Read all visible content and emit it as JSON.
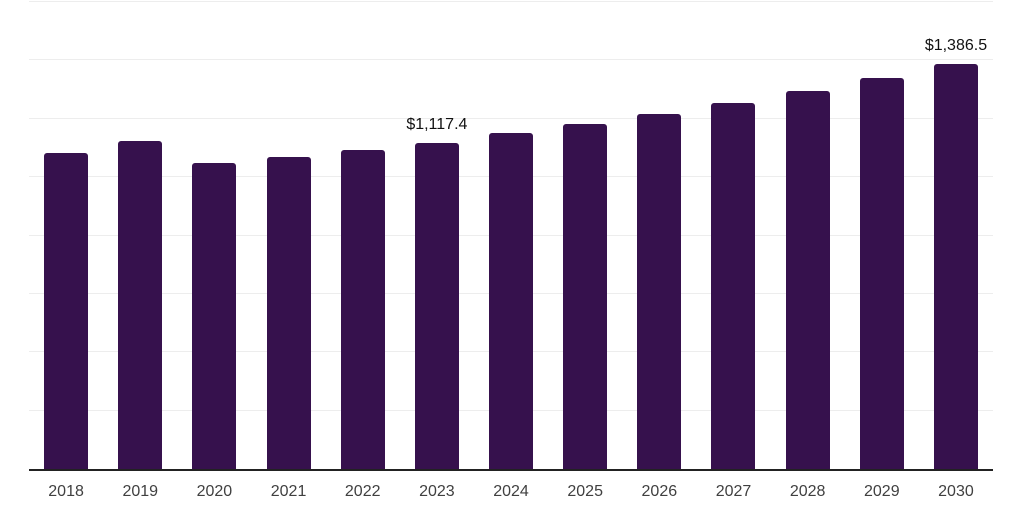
{
  "chart_data": {
    "type": "bar",
    "title": "",
    "xlabel": "",
    "ylabel": "",
    "categories": [
      "2018",
      "2019",
      "2020",
      "2021",
      "2022",
      "2023",
      "2024",
      "2025",
      "2026",
      "2027",
      "2028",
      "2029",
      "2030"
    ],
    "values": [
      1083,
      1123,
      1048,
      1069,
      1093,
      1117.4,
      1151,
      1182,
      1216,
      1254,
      1295,
      1340,
      1386.5
    ],
    "labeled_points": [
      {
        "index": 5,
        "label": "$1,117.4"
      },
      {
        "index": 12,
        "label": "$1,386.5"
      }
    ],
    "ylim": [
      0,
      1600
    ],
    "gridline_step": 200,
    "grid": "horizontal",
    "legend": "none",
    "y_axis_tick_labels_visible": false,
    "colors": {
      "bar": "#36114D",
      "gridline": "#EDEDED",
      "axis_line": "#222222",
      "value_label": "#111111",
      "x_tick_label": "#404040",
      "background": "#FFFFFF"
    }
  }
}
